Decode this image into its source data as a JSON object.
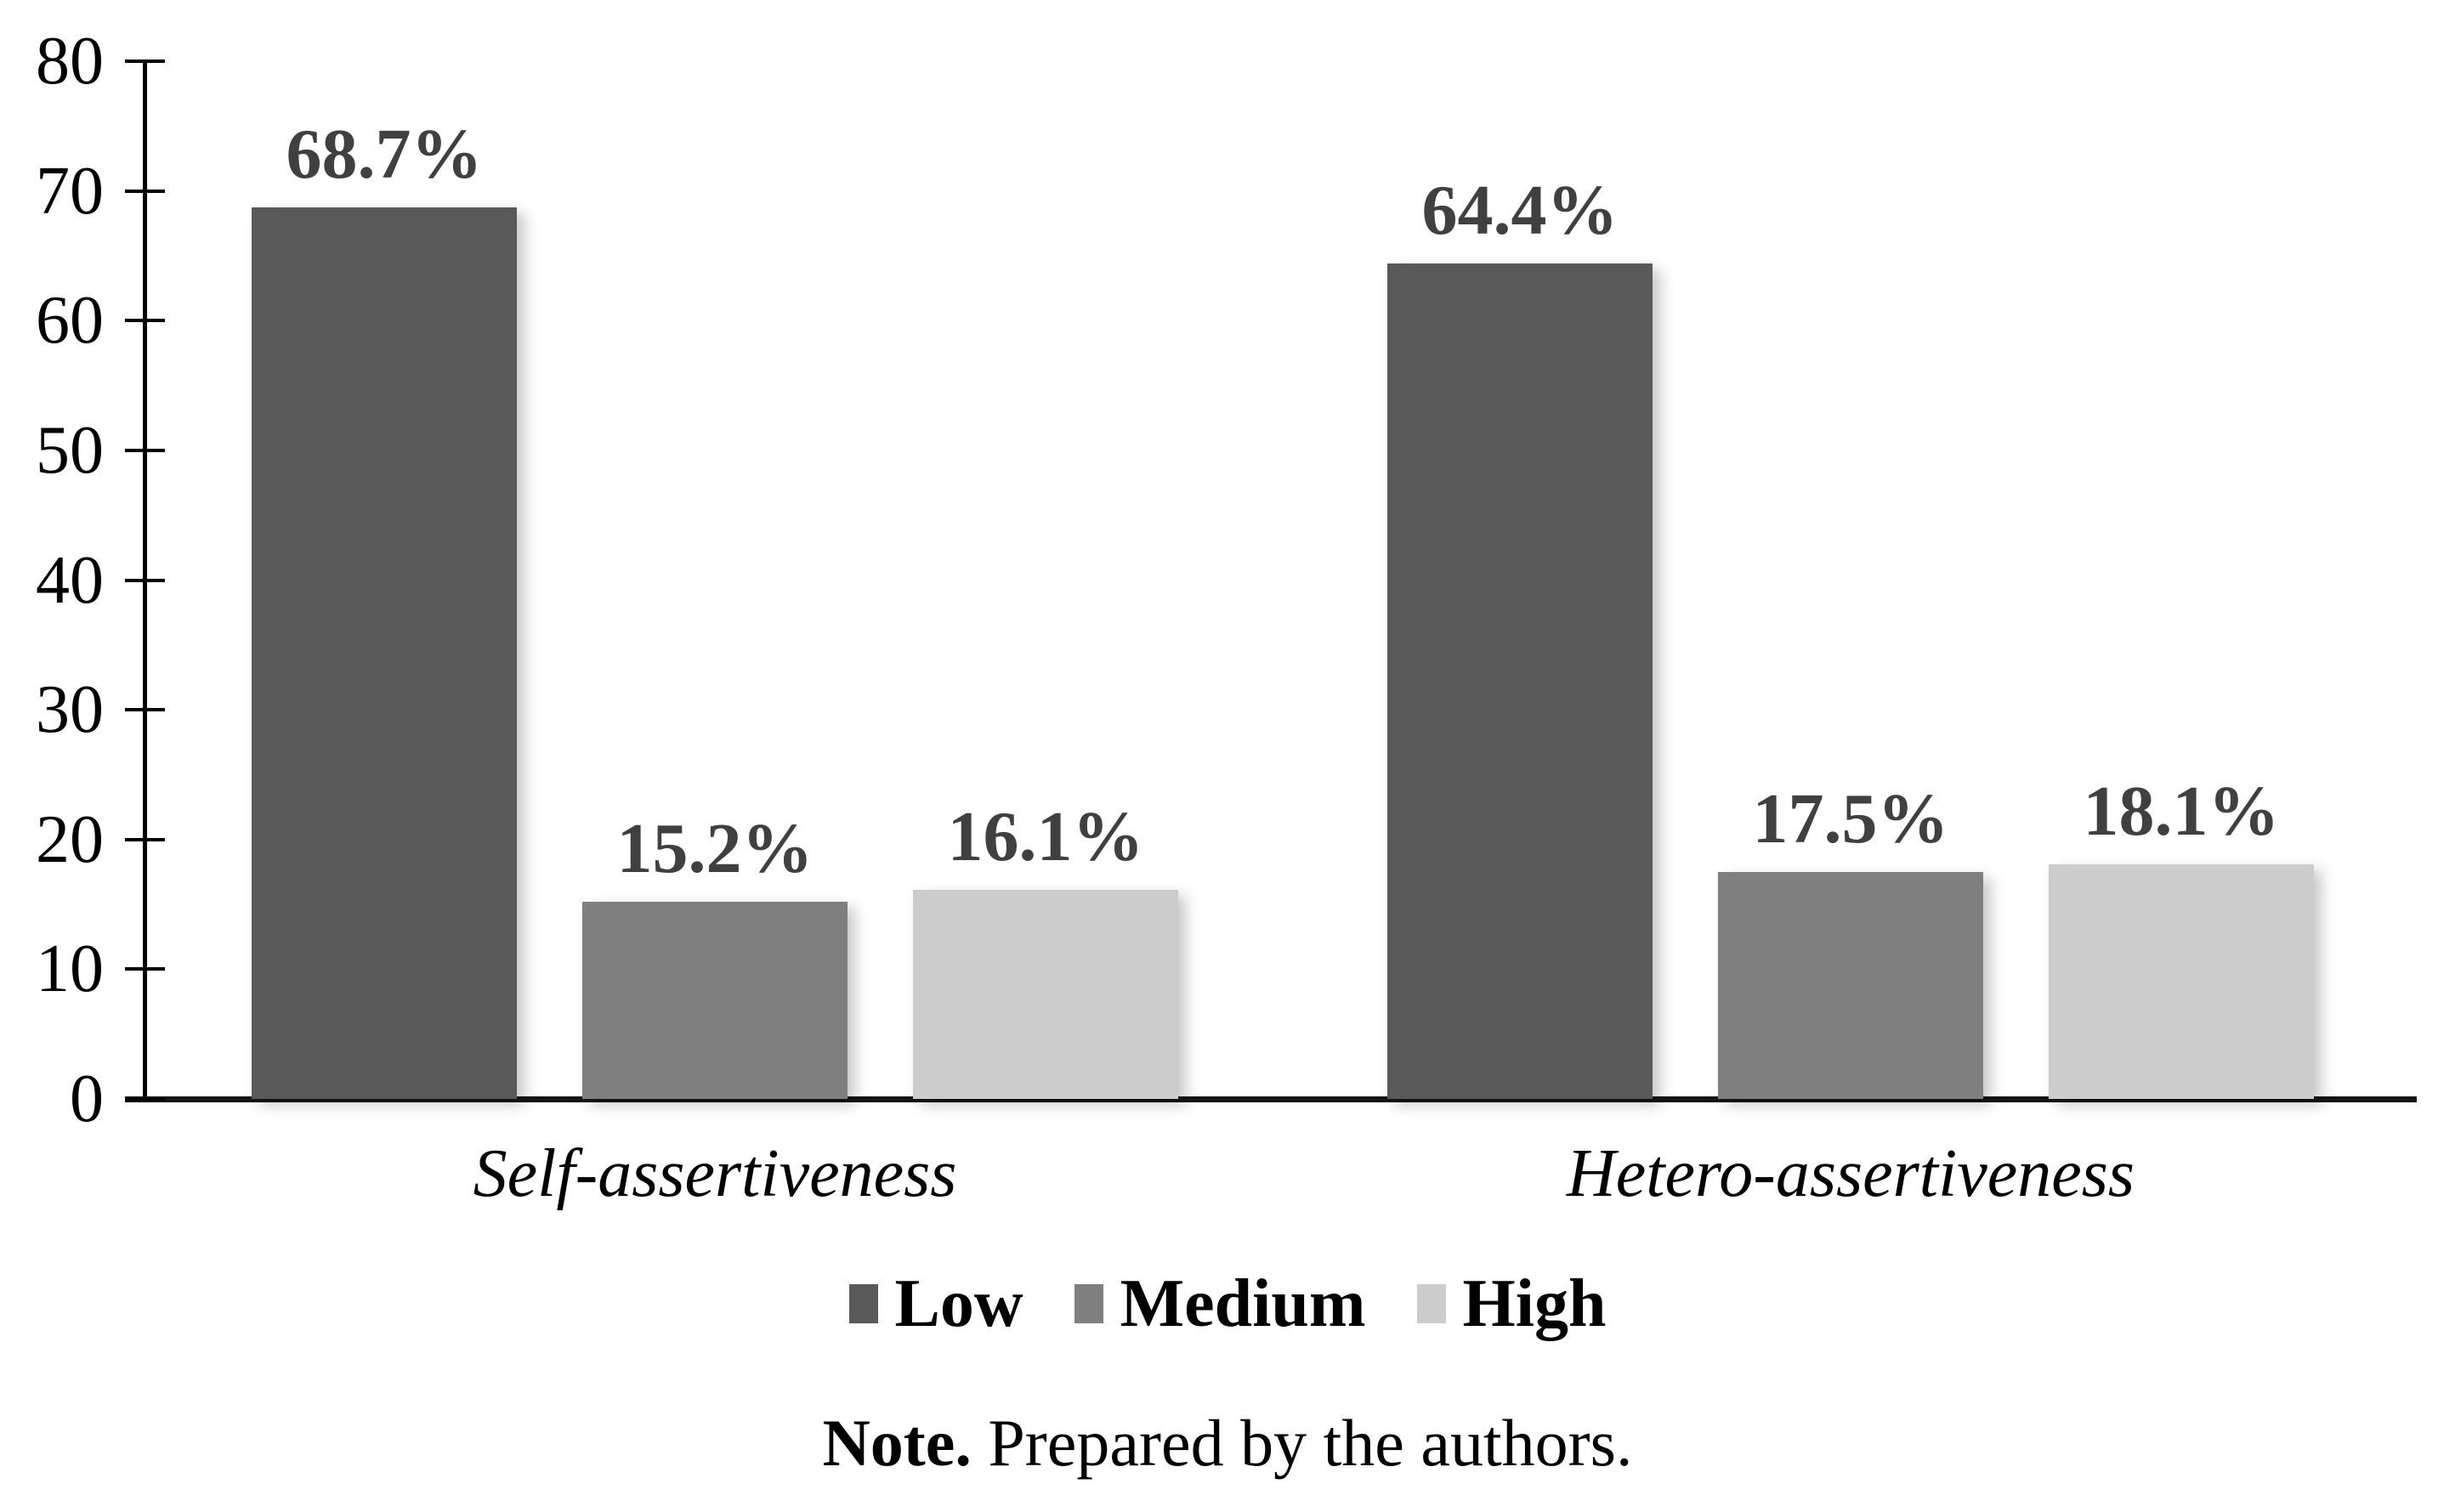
{
  "chart_data": {
    "type": "bar",
    "title": "",
    "categories": [
      "Self-assertiveness",
      "Hetero-assertiveness"
    ],
    "series": [
      {
        "name": "Low",
        "color": "#595959",
        "values": [
          68.7,
          64.4
        ],
        "labels": [
          "68.7%",
          "64.4%"
        ]
      },
      {
        "name": "Medium",
        "color": "#7F7F7F",
        "values": [
          15.2,
          17.5
        ],
        "labels": [
          "15.2%",
          "17.5%"
        ]
      },
      {
        "name": "High",
        "color": "#CCCCCC",
        "values": [
          16.1,
          18.1
        ],
        "labels": [
          "16.1%",
          "18.1%"
        ]
      }
    ],
    "ylim": [
      0,
      80
    ],
    "yticks": [
      0,
      10,
      20,
      30,
      40,
      50,
      60,
      70,
      80
    ],
    "grid": false,
    "legend_position": "bottom",
    "value_label_color": "#404040",
    "axis_color": "#000000"
  },
  "note": {
    "bold": "Note.",
    "text": "Prepared by the authors."
  }
}
